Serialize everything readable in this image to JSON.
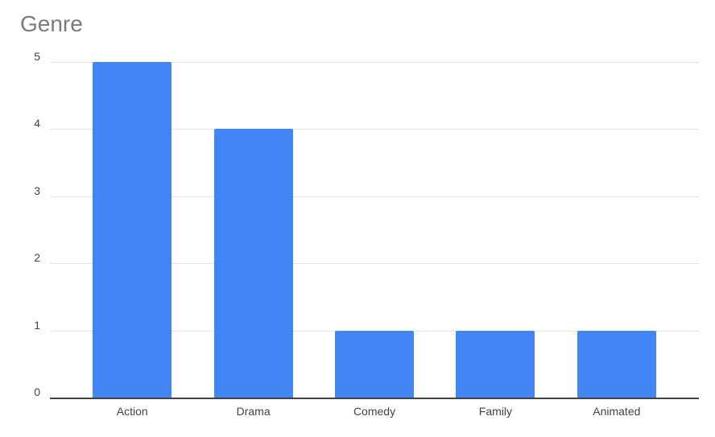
{
  "chart_data": {
    "type": "bar",
    "title": "Genre",
    "categories": [
      "Action",
      "Drama",
      "Comedy",
      "Family",
      "Animated"
    ],
    "values": [
      5,
      4,
      1,
      1,
      1
    ],
    "xlabel": "",
    "ylabel": "",
    "ylim": [
      0,
      5
    ],
    "ytick_step": 1,
    "yticks": [
      0,
      1,
      2,
      3,
      4,
      5
    ],
    "grid": true,
    "legend_position": "none",
    "colors": {
      "bar": "#4285f4",
      "gridline": "#e3e3e3",
      "axis_line": "#424242",
      "title_text": "#7b7b7b",
      "tick_label_text": "#424242",
      "background": "#ffffff"
    }
  }
}
